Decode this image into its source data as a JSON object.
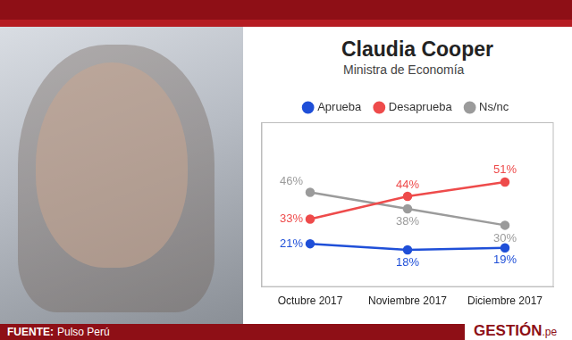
{
  "chart_data": {
    "type": "line",
    "title": "Claudia Cooper",
    "subtitle": "Ministra de Economía",
    "categories": [
      "Octubre 2017",
      "Noviembre 2017",
      "Diciembre 2017"
    ],
    "series": [
      {
        "name": "Aprueba",
        "color": "#1f4fd8",
        "values": [
          21,
          18,
          19
        ],
        "value_labels": [
          "21%",
          "18%",
          "19%"
        ],
        "marker": "circle"
      },
      {
        "name": "Desaprueba",
        "color": "#ee4b4b",
        "values": [
          33,
          44,
          51
        ],
        "value_labels": [
          "33%",
          "44%",
          "51%"
        ],
        "marker": "circle"
      },
      {
        "name": "Ns/nc",
        "color": "#9b9b9b",
        "values": [
          46,
          38,
          30
        ],
        "value_labels": [
          "46%",
          "38%",
          "30%"
        ],
        "marker": "circle"
      }
    ],
    "ylim": [
      0,
      80
    ],
    "yticks": [],
    "grid": false,
    "legend": "top",
    "data_labels": true,
    "tick_labels": "x",
    "source_label": "FUENTE:",
    "source": "Pulso Perú",
    "logo": "GESTIÓN",
    "logo_suffix": ".pe"
  }
}
